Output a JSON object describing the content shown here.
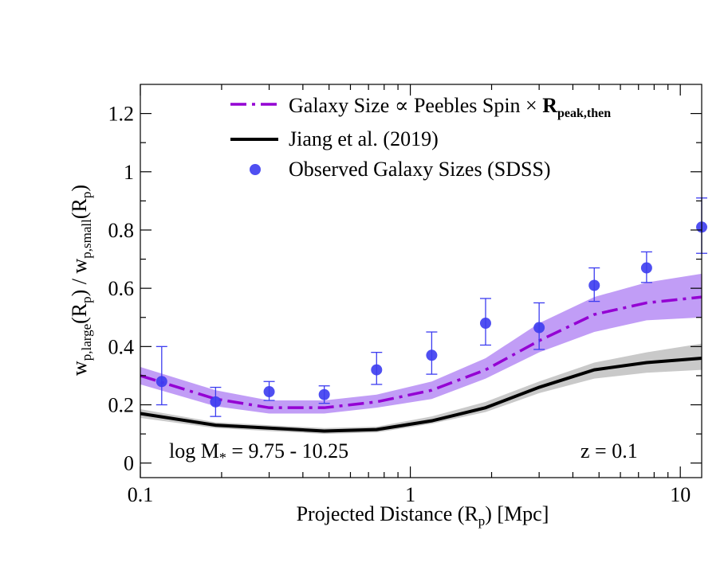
{
  "chart_data": {
    "type": "line",
    "xscale": "log",
    "xlim": [
      0.1,
      12.0
    ],
    "ylim": [
      -0.05,
      1.3
    ],
    "xticks": [
      {
        "value": 0.1,
        "label": "0.1"
      },
      {
        "value": 1,
        "label": "1"
      },
      {
        "value": 10,
        "label": "10"
      }
    ],
    "yticks": [
      {
        "value": 0,
        "label": "0"
      },
      {
        "value": 0.2,
        "label": "0.2"
      },
      {
        "value": 0.4,
        "label": "0.4"
      },
      {
        "value": 0.6,
        "label": "0.6"
      },
      {
        "value": 0.8,
        "label": "0.8"
      },
      {
        "value": 1,
        "label": "1"
      },
      {
        "value": 1.2,
        "label": "1.2"
      }
    ],
    "xlabel": {
      "main": "Projected Distance (R",
      "sub": "p",
      "tail": ") [Mpc]"
    },
    "ylabel": {
      "w1": "w",
      "s1": "p,large",
      "m1": "(R",
      "s2": "p",
      "m2": ") / w",
      "s3": "p,small",
      "m3": "(R",
      "s4": "p",
      "m4": ")"
    },
    "annotations": {
      "mass": {
        "prefix": "log M",
        "sub": "*",
        "suffix": " = 9.75 - 10.25"
      },
      "redshift": "z = 0.1"
    },
    "legend": {
      "position": "top-center",
      "entries": [
        {
          "id": "peebles",
          "text": "Galaxy Size ∝ Peebles Spin × ",
          "bold": "R",
          "bold_sub": "peak,then"
        },
        {
          "id": "jiang",
          "text": "Jiang et al. (2019)"
        },
        {
          "id": "observed",
          "text": "Observed Galaxy Sizes (SDSS)"
        }
      ]
    },
    "series": [
      {
        "name": "Galaxy Size ∝ Peebles Spin × R_peak,then",
        "style": "dash-dot",
        "color": "#9400d3",
        "band_color": "#b68cf5",
        "x": [
          0.1,
          0.19,
          0.3,
          0.48,
          0.75,
          1.2,
          1.9,
          3.0,
          4.8,
          7.5,
          12.0
        ],
        "y": [
          0.3,
          0.22,
          0.19,
          0.19,
          0.21,
          0.25,
          0.32,
          0.42,
          0.51,
          0.55,
          0.57
        ],
        "y_lower": [
          0.27,
          0.195,
          0.17,
          0.17,
          0.19,
          0.22,
          0.29,
          0.38,
          0.45,
          0.49,
          0.5
        ],
        "y_upper": [
          0.33,
          0.25,
          0.215,
          0.215,
          0.235,
          0.28,
          0.36,
          0.48,
          0.57,
          0.62,
          0.65
        ]
      },
      {
        "name": "Jiang et al. (2019)",
        "style": "solid",
        "color": "#000000",
        "band_color": "#c0c0c0",
        "x": [
          0.1,
          0.19,
          0.3,
          0.48,
          0.75,
          1.2,
          1.9,
          3.0,
          4.8,
          7.5,
          12.0
        ],
        "y": [
          0.17,
          0.13,
          0.12,
          0.11,
          0.115,
          0.145,
          0.19,
          0.26,
          0.32,
          0.345,
          0.36
        ],
        "y_lower": [
          0.155,
          0.12,
          0.11,
          0.1,
          0.105,
          0.135,
          0.175,
          0.24,
          0.29,
          0.31,
          0.32
        ],
        "y_upper": [
          0.185,
          0.14,
          0.13,
          0.12,
          0.125,
          0.16,
          0.21,
          0.28,
          0.345,
          0.38,
          0.41
        ]
      }
    ],
    "points": {
      "name": "Observed Galaxy Sizes (SDSS)",
      "color": "#3c3cf0",
      "x": [
        0.12,
        0.19,
        0.3,
        0.48,
        0.75,
        1.2,
        1.9,
        3.0,
        4.8,
        7.5,
        12.0
      ],
      "y": [
        0.28,
        0.21,
        0.245,
        0.235,
        0.32,
        0.37,
        0.48,
        0.465,
        0.61,
        0.67,
        0.81
      ],
      "err_low": [
        0.08,
        0.05,
        0.03,
        0.03,
        0.05,
        0.065,
        0.075,
        0.075,
        0.055,
        0.05,
        0.09
      ],
      "err_high": [
        0.12,
        0.05,
        0.035,
        0.03,
        0.06,
        0.08,
        0.085,
        0.085,
        0.06,
        0.055,
        0.1
      ]
    }
  }
}
